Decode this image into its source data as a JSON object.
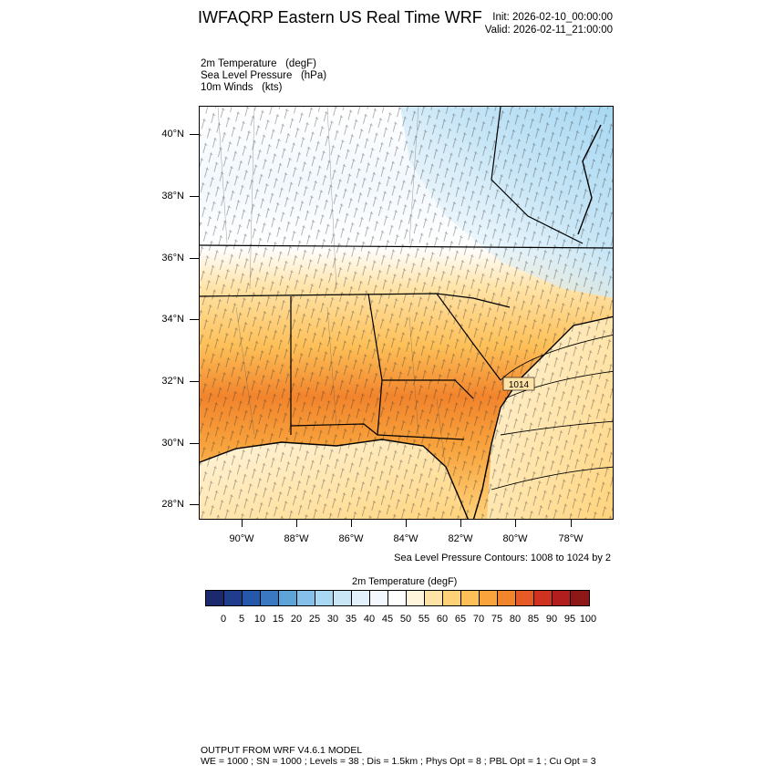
{
  "header": {
    "title": "IWFAQRP Eastern US Real Time WRF",
    "init": "Init: 2026-02-10_00:00:00",
    "valid": "Valid: 2026-02-11_21:00:00"
  },
  "fields": {
    "temperature": "2m Temperature   (degF)",
    "pressure": "Sea Level Pressure   (hPa)",
    "winds": "10m Winds   (kts)"
  },
  "map": {
    "lat_labels": [
      "40°N",
      "38°N",
      "36°N",
      "34°N",
      "32°N",
      "30°N",
      "28°N"
    ],
    "lon_labels": [
      "90°W",
      "88°W",
      "86°W",
      "84°W",
      "82°W",
      "80°W",
      "78°W"
    ],
    "contour_label": "1014",
    "slp_note": "Sea Level Pressure Contours: 1008 to 1024 by 2"
  },
  "colorbar": {
    "title": "2m Temperature  (degF)",
    "labels": [
      "0",
      "5",
      "10",
      "15",
      "20",
      "25",
      "30",
      "35",
      "40",
      "45",
      "50",
      "55",
      "60",
      "65",
      "70",
      "75",
      "80",
      "85",
      "90",
      "95",
      "100"
    ],
    "colors": [
      "#1a2a6c",
      "#1f3d8c",
      "#2558a8",
      "#3a78c2",
      "#5fa4d8",
      "#84c0e8",
      "#a8d8f2",
      "#c8e6f6",
      "#e2f1fb",
      "#f2f8fd",
      "#ffffff",
      "#fff4dc",
      "#ffe3a6",
      "#ffd27a",
      "#fdbf57",
      "#f8a33c",
      "#f2842c",
      "#e65a25",
      "#cf3220",
      "#b21d1d",
      "#8e1717"
    ]
  },
  "footer": {
    "line1": "OUTPUT FROM WRF V4.6.1 MODEL",
    "line2": "WE = 1000 ; SN = 1000 ; Levels = 38 ; Dis = 1.5km ; Phys Opt = 8 ; PBL Opt = 1 ; Cu Opt = 3"
  }
}
